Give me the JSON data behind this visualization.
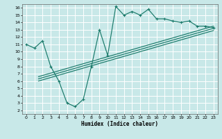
{
  "xlabel": "Humidex (Indice chaleur)",
  "bg_color": "#c8e8e8",
  "grid_color": "#ffffff",
  "line_color": "#1a7a6a",
  "xlim": [
    -0.5,
    23.5
  ],
  "ylim": [
    1.5,
    16.5
  ],
  "xticks": [
    0,
    1,
    2,
    3,
    4,
    5,
    6,
    7,
    8,
    9,
    10,
    11,
    12,
    13,
    14,
    15,
    16,
    17,
    18,
    19,
    20,
    21,
    22,
    23
  ],
  "yticks": [
    2,
    3,
    4,
    5,
    6,
    7,
    8,
    9,
    10,
    11,
    12,
    13,
    14,
    15,
    16
  ],
  "curve1_x": [
    0,
    1,
    2,
    3,
    4,
    5,
    6,
    7,
    8,
    9,
    10,
    11,
    12,
    13,
    14,
    15,
    16,
    17,
    18,
    19,
    20,
    21,
    22,
    23
  ],
  "curve1_y": [
    11,
    10.5,
    11.5,
    8.0,
    6.0,
    3.0,
    2.5,
    3.5,
    8.0,
    13.0,
    9.5,
    16.2,
    15.0,
    15.5,
    15.0,
    15.8,
    14.5,
    14.5,
    14.2,
    14.0,
    14.2,
    13.5,
    13.5,
    13.3
  ],
  "trend_lines": [
    {
      "x": [
        1.5,
        23
      ],
      "y": [
        6.0,
        12.9
      ]
    },
    {
      "x": [
        1.5,
        23
      ],
      "y": [
        6.3,
        13.2
      ]
    },
    {
      "x": [
        1.5,
        23
      ],
      "y": [
        6.6,
        13.5
      ]
    }
  ]
}
